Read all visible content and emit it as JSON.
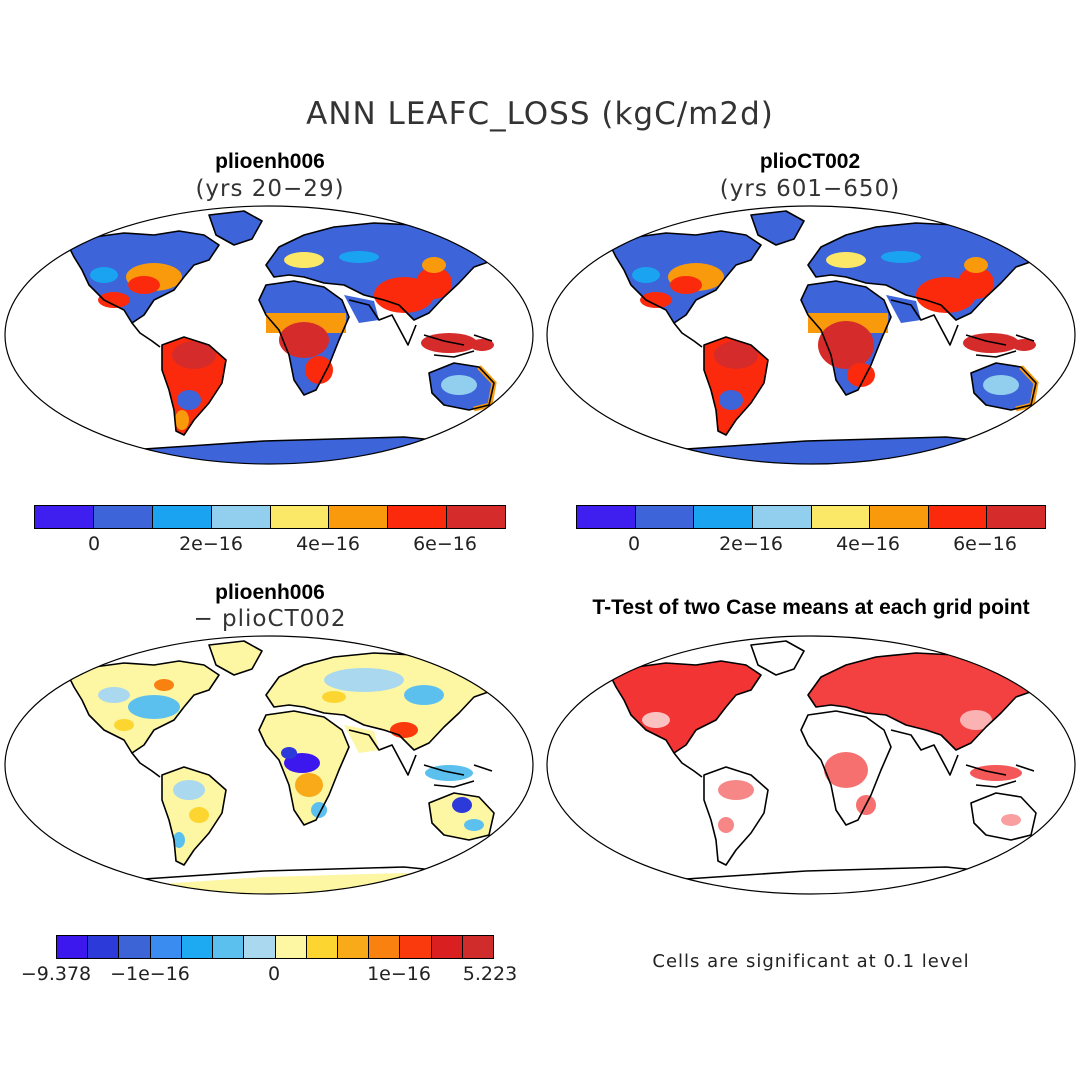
{
  "main_title": "ANN LEAFC_LOSS (kgC/m2d)",
  "panels": {
    "top_left": {
      "title": "plioenh006",
      "subtitle": "(yrs 20−29)"
    },
    "top_right": {
      "title": "plioCT002",
      "subtitle": "(yrs 601−650)"
    },
    "bottom_left": {
      "title": "plioenh006",
      "subtitle": "− plioCT002"
    },
    "bottom_right": {
      "title": "T-Test of two Case means at each grid point",
      "note": "Cells are significant at 0.1 level"
    }
  },
  "colorbar_top": {
    "colors": [
      "#3f1ff0",
      "#3d64d9",
      "#1aa3f0",
      "#92cfee",
      "#fbe866",
      "#f99a0c",
      "#fb2a0c",
      "#d62b2b"
    ],
    "ticks": [
      "0",
      "2e−16",
      "4e−16",
      "6e−16"
    ]
  },
  "colorbar_bottom": {
    "colors": [
      "#3c18ee",
      "#2b3ad8",
      "#3c64d6",
      "#3b8cf0",
      "#1eaaf2",
      "#5cc0ee",
      "#a9d8ef",
      "#fdf6a3",
      "#fcd530",
      "#f9aa18",
      "#f98110",
      "#fa3a0c",
      "#d91f1f",
      "#d02c2c"
    ],
    "ticks": [
      "−9.378",
      "−1e−16",
      "0",
      "1e−16",
      "5.223"
    ]
  },
  "colors": {
    "ocean": "#ffffff",
    "significant": "#f01010"
  }
}
